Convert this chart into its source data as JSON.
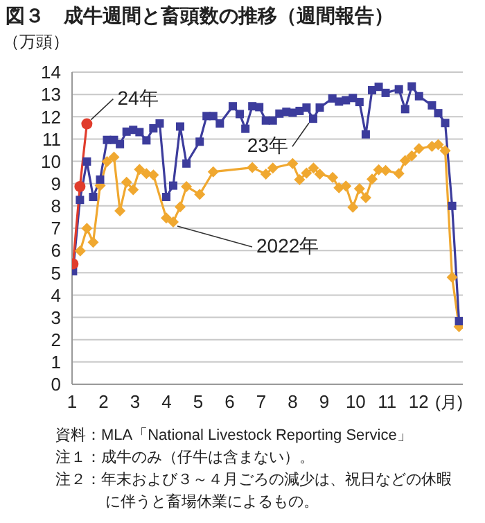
{
  "chart_data": {
    "type": "line",
    "title": "図３　成牛週間と畜頭数の推移（週間報告）",
    "ylabel": "（万頭）",
    "xlabel": "(月)",
    "xlim": [
      1,
      13.4
    ],
    "xticks": [
      1,
      2,
      3,
      4,
      5,
      6,
      7,
      8,
      9,
      10,
      11,
      12
    ],
    "ylim": [
      0,
      14
    ],
    "yticks": [
      0,
      1,
      2,
      3,
      4,
      5,
      6,
      7,
      8,
      9,
      10,
      11,
      12,
      13,
      14
    ],
    "grid": "y",
    "legend": false,
    "series": [
      {
        "name": "2022年",
        "color": "#f0a830",
        "marker": "diamond",
        "x": [
          1.26,
          1.47,
          1.67,
          1.89,
          2.11,
          2.33,
          2.52,
          2.73,
          2.94,
          3.14,
          3.36,
          3.58,
          3.99,
          4.21,
          4.43,
          4.63,
          5.05,
          5.48,
          6.72,
          7.15,
          7.37,
          8.0,
          8.22,
          8.44,
          8.66,
          8.86,
          9.27,
          9.47,
          9.69,
          9.91,
          10.12,
          10.32,
          10.52,
          10.73,
          10.95,
          11.37,
          11.57,
          11.78,
          12.01,
          12.42,
          12.62,
          12.84,
          13.06,
          13.28
        ],
        "values": [
          5.98,
          6.99,
          6.37,
          8.91,
          9.99,
          10.19,
          7.78,
          9.06,
          8.73,
          9.64,
          9.45,
          9.39,
          7.46,
          7.28,
          7.96,
          8.87,
          8.52,
          9.53,
          9.72,
          9.43,
          9.7,
          9.9,
          9.18,
          9.47,
          9.7,
          9.43,
          9.28,
          8.81,
          8.89,
          7.94,
          8.77,
          8.37,
          9.2,
          9.62,
          9.59,
          9.45,
          10.03,
          10.24,
          10.57,
          10.67,
          10.75,
          10.48,
          4.8,
          2.58
        ]
      },
      {
        "name": "23年",
        "color": "#3c3c9c",
        "marker": "square",
        "x": [
          1.03,
          1.25,
          1.47,
          1.67,
          1.89,
          2.11,
          2.33,
          2.52,
          2.73,
          2.94,
          3.14,
          3.36,
          3.58,
          3.78,
          3.99,
          4.21,
          4.43,
          4.63,
          5.05,
          5.27,
          5.48,
          5.69,
          6.1,
          6.32,
          6.5,
          6.72,
          6.94,
          7.15,
          7.37,
          7.58,
          7.8,
          8.0,
          8.22,
          8.44,
          8.65,
          8.86,
          9.26,
          9.47,
          9.69,
          9.91,
          10.12,
          10.32,
          10.52,
          10.73,
          10.95,
          11.37,
          11.57,
          11.78,
          12.01,
          12.42,
          12.62,
          12.84,
          13.06,
          13.28
        ],
        "values": [
          5.07,
          8.27,
          9.99,
          8.4,
          9.18,
          10.96,
          10.96,
          10.77,
          11.33,
          11.41,
          11.31,
          10.94,
          11.48,
          11.7,
          8.4,
          8.91,
          11.56,
          9.9,
          10.88,
          12.03,
          12.03,
          11.7,
          12.47,
          12.12,
          11.46,
          12.47,
          12.43,
          11.83,
          11.83,
          12.14,
          12.22,
          12.18,
          12.26,
          12.41,
          11.91,
          12.41,
          12.82,
          12.68,
          12.74,
          12.84,
          12.66,
          11.21,
          13.19,
          13.34,
          13.07,
          13.23,
          12.34,
          13.36,
          12.92,
          12.51,
          12.16,
          11.72,
          8.0,
          2.83
        ]
      },
      {
        "name": "24年",
        "color": "#e03c2c",
        "marker": "circle",
        "x": [
          1.03,
          1.25,
          1.47
        ],
        "values": [
          5.4,
          8.87,
          11.68
        ]
      }
    ],
    "annotations": [
      "資料：MLA「National Livestock Reporting Service」",
      "注１：成牛のみ（仔牛は含まない）。",
      "注２：年末および３～４月ごろの減少は、祝日などの休暇に伴うと畜場休業によるもの。"
    ]
  }
}
